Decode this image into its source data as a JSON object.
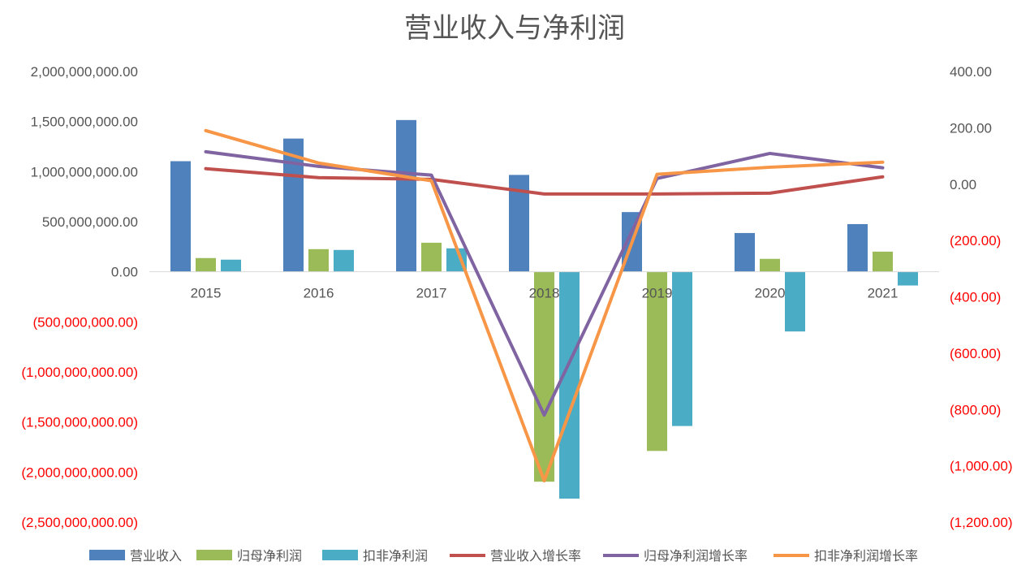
{
  "chart_data": {
    "type": "bar+line",
    "title": "营业收入与净利润",
    "categories": [
      "2015",
      "2016",
      "2017",
      "2018",
      "2019",
      "2020",
      "2021"
    ],
    "left_axis": {
      "range": [
        -2500000000,
        2000000000
      ],
      "step": 500000000,
      "tick_labels": [
        "2,000,000,000.00",
        "1,500,000,000.00",
        "1,000,000,000.00",
        "500,000,000.00",
        "0.00",
        "(500,000,000.00)",
        "(1,000,000,000.00)",
        "(1,500,000,000.00)",
        "(2,000,000,000.00)",
        "(2,500,000,000.00)"
      ]
    },
    "right_axis": {
      "range": [
        -1200,
        400
      ],
      "step": 200,
      "tick_labels": [
        "400.00",
        "200.00",
        "0.00",
        "(200.00)",
        "(400.00)",
        "(600.00)",
        "(800.00)",
        "(1,000.00)",
        "(1,200.00)"
      ]
    },
    "bar_series": [
      {
        "name": "营业收入",
        "color": "#4f81bd",
        "values": [
          1104000000,
          1330000000,
          1515000000,
          967000000,
          596000000,
          387000000,
          476000000
        ]
      },
      {
        "name": "归母净利润",
        "color": "#9bbb59",
        "values": [
          137000000,
          226000000,
          290000000,
          -2096000000,
          -1789000000,
          129000000,
          201000000
        ]
      },
      {
        "name": "扣非净利润",
        "color": "#4bacc6",
        "values": [
          121000000,
          218000000,
          234000000,
          -2265000000,
          -1540000000,
          -596000000,
          -137000000
        ]
      }
    ],
    "line_series": [
      {
        "name": "营业收入增长率",
        "color": "#c0504d",
        "values": [
          55,
          23,
          17,
          -35,
          -35,
          -32,
          26
        ]
      },
      {
        "name": "归母净利润增长率",
        "color": "#8064a2",
        "values": [
          115,
          63,
          32,
          -820,
          20,
          109,
          58
        ]
      },
      {
        "name": "扣非净利润增长率",
        "color": "#f79646",
        "values": [
          190,
          75,
          12,
          -1053,
          35,
          60,
          78
        ]
      }
    ],
    "legend_position": "bottom",
    "grid": false
  }
}
